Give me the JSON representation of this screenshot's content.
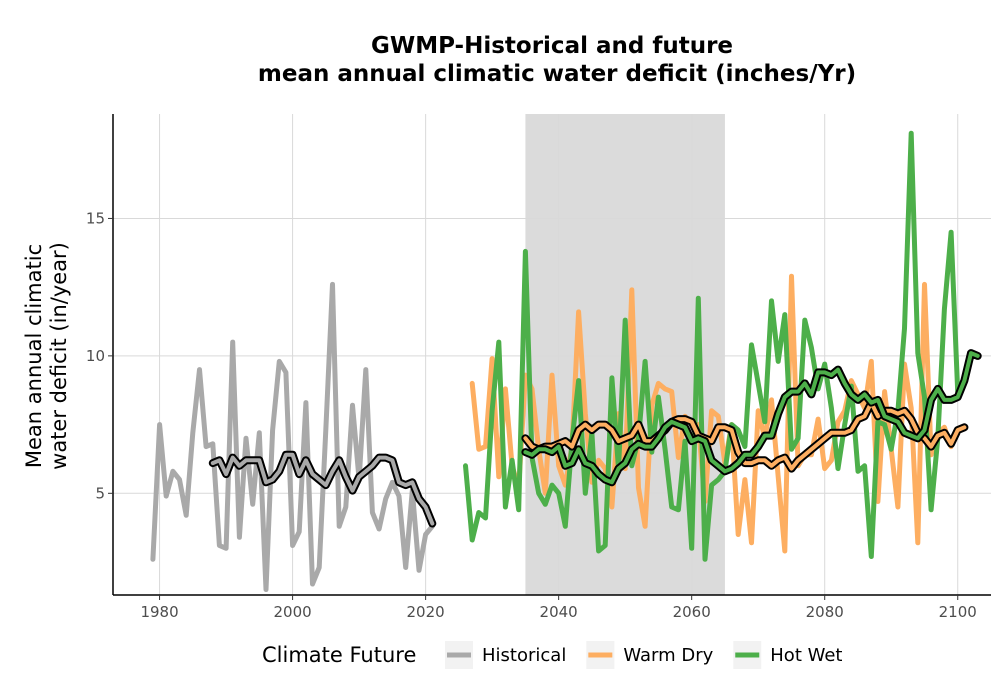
{
  "chart_data": {
    "type": "line",
    "title_line1": "GWMP-Historical and future",
    "title_line2": "mean annual climatic water deficit (inches/Yr)",
    "xlabel": "",
    "ylabel_line1": "Mean annual climatic",
    "ylabel_line2": "water deficit (in/year)",
    "xlim": [
      1973,
      2105
    ],
    "ylim": [
      1.3,
      18.8
    ],
    "x_ticks": [
      1980,
      2000,
      2020,
      2040,
      2060,
      2080,
      2100
    ],
    "x_tick_labels": [
      "1980",
      "2000",
      "2020",
      "2040",
      "2060",
      "2080",
      "2100"
    ],
    "y_ticks": [
      5,
      10,
      15
    ],
    "y_tick_labels": [
      "5",
      "10",
      "15"
    ],
    "grid": true,
    "shaded_region": {
      "x_start": 2035,
      "x_end": 2065,
      "color": "#dbdbdb"
    },
    "legend": {
      "title": "Climate Future",
      "position": "bottom"
    },
    "series": [
      {
        "name": "Historical",
        "color": "#a9a9a9",
        "x_start": 1979,
        "values": [
          2.6,
          7.5,
          4.9,
          5.8,
          5.5,
          4.2,
          7.2,
          9.5,
          6.7,
          6.8,
          3.1,
          3.0,
          10.5,
          3.4,
          7.0,
          4.6,
          7.2,
          1.5,
          7.3,
          9.8,
          9.4,
          3.1,
          3.6,
          8.3,
          1.7,
          2.3,
          7.3,
          12.6,
          3.8,
          4.5,
          8.2,
          5.5,
          9.5,
          4.3,
          3.7,
          4.8,
          5.4,
          4.9,
          2.3,
          5.1,
          2.2,
          3.5,
          3.8
        ]
      },
      {
        "name": "Historical smooth",
        "color": "#a9a9a9",
        "smooth": true,
        "x_start": 1988,
        "values": [
          6.1,
          6.2,
          5.7,
          6.3,
          6.0,
          6.2,
          6.2,
          6.2,
          5.4,
          5.5,
          5.8,
          6.4,
          6.4,
          5.7,
          6.2,
          5.7,
          5.5,
          5.3,
          5.8,
          6.2,
          5.6,
          5.1,
          5.6,
          5.8,
          6.0,
          6.3,
          6.3,
          6.2,
          5.4,
          5.3,
          5.4,
          4.8,
          4.5,
          3.9
        ]
      },
      {
        "name": "Warm Dry",
        "color": "#fdae61",
        "x_start": 2027,
        "values": [
          9.0,
          6.6,
          6.7,
          9.9,
          5.6,
          8.8,
          6.0,
          5.2,
          9.3,
          8.8,
          6.6,
          5.0,
          9.3,
          6.0,
          5.3,
          6.7,
          11.6,
          7.9,
          5.4,
          6.2,
          5.9,
          4.5,
          7.9,
          5.9,
          12.4,
          5.2,
          3.8,
          8.2,
          9.0,
          8.8,
          8.7,
          6.3,
          7.8,
          7.5,
          7.5,
          4.7,
          8.0,
          7.8,
          6.1,
          7.5,
          3.5,
          5.5,
          3.2,
          8.0,
          7.0,
          8.4,
          5.6,
          2.9,
          12.9,
          6.0,
          6.4,
          6.4,
          7.7,
          5.9,
          6.2,
          7.6,
          8.0,
          9.1,
          8.6,
          8.1,
          9.8,
          4.7,
          8.7,
          6.6,
          4.5,
          9.7,
          8.1,
          3.2,
          12.6,
          6.4,
          7.2,
          7.4,
          6.7
        ]
      },
      {
        "name": "Hot Wet",
        "color": "#4daf4a",
        "x_start": 2026,
        "values": [
          6.0,
          3.3,
          4.3,
          4.1,
          8.0,
          10.5,
          4.5,
          6.2,
          4.4,
          13.8,
          6.3,
          5.0,
          4.6,
          5.3,
          5.0,
          3.8,
          6.9,
          9.1,
          5.0,
          7.2,
          2.9,
          3.1,
          9.2,
          5.9,
          11.3,
          6.0,
          7.0,
          9.8,
          6.5,
          8.5,
          6.6,
          4.5,
          4.4,
          6.9,
          3.0,
          12.1,
          2.6,
          5.3,
          5.5,
          5.8,
          7.5,
          7.3,
          6.7,
          10.4,
          9.0,
          7.6,
          12.0,
          9.8,
          11.5,
          6.6,
          7.0,
          11.3,
          10.3,
          8.8,
          9.7,
          8.1,
          5.9,
          7.5,
          8.9,
          5.8,
          6.0,
          2.7,
          7.6,
          7.5,
          6.6,
          8.0,
          11.0,
          18.1,
          10.1,
          8.5,
          4.4,
          7.0,
          11.7,
          14.5,
          8.7
        ]
      },
      {
        "name": "Warm Dry smooth",
        "color": "#fdae61",
        "smooth": true,
        "x_start": 2035,
        "values": [
          7.0,
          6.7,
          6.6,
          6.7,
          6.7,
          6.8,
          6.9,
          6.7,
          7.3,
          7.5,
          7.3,
          7.5,
          7.5,
          7.3,
          6.9,
          7.0,
          7.1,
          7.5,
          6.9,
          6.9,
          7.1,
          7.3,
          7.6,
          7.7,
          7.7,
          7.6,
          7.1,
          7.0,
          6.9,
          7.4,
          7.4,
          7.3,
          6.5,
          6.1,
          6.1,
          6.2,
          6.2,
          6.0,
          6.2,
          6.3,
          5.9,
          6.2,
          6.4,
          6.6,
          6.8,
          7.0,
          7.2,
          7.2,
          7.2,
          7.3,
          7.7,
          7.8,
          8.3,
          7.8,
          8.0,
          8.0,
          7.9,
          8.0,
          7.7,
          7.2,
          7.0,
          6.7,
          7.1,
          7.2,
          6.8,
          7.3,
          7.4
        ]
      },
      {
        "name": "Hot Wet smooth",
        "color": "#4daf4a",
        "smooth": true,
        "x_start": 2035,
        "values": [
          6.5,
          6.4,
          6.6,
          6.6,
          6.5,
          6.7,
          6.0,
          6.1,
          6.6,
          6.1,
          6.0,
          5.7,
          5.5,
          5.4,
          5.9,
          6.1,
          6.6,
          6.8,
          6.7,
          6.7,
          7.0,
          7.4,
          7.6,
          7.5,
          7.4,
          6.9,
          7.0,
          6.9,
          6.2,
          6.0,
          5.8,
          5.9,
          6.1,
          6.4,
          6.4,
          6.7,
          7.1,
          7.1,
          7.9,
          8.5,
          8.7,
          8.7,
          9.0,
          8.6,
          9.4,
          9.4,
          9.3,
          9.5,
          9.0,
          8.6,
          8.4,
          8.6,
          8.3,
          8.4,
          7.8,
          7.7,
          7.6,
          7.2,
          7.1,
          7.0,
          7.3,
          8.4,
          8.8,
          8.4,
          8.4,
          8.5,
          9.1,
          10.1,
          10.0
        ]
      }
    ]
  }
}
